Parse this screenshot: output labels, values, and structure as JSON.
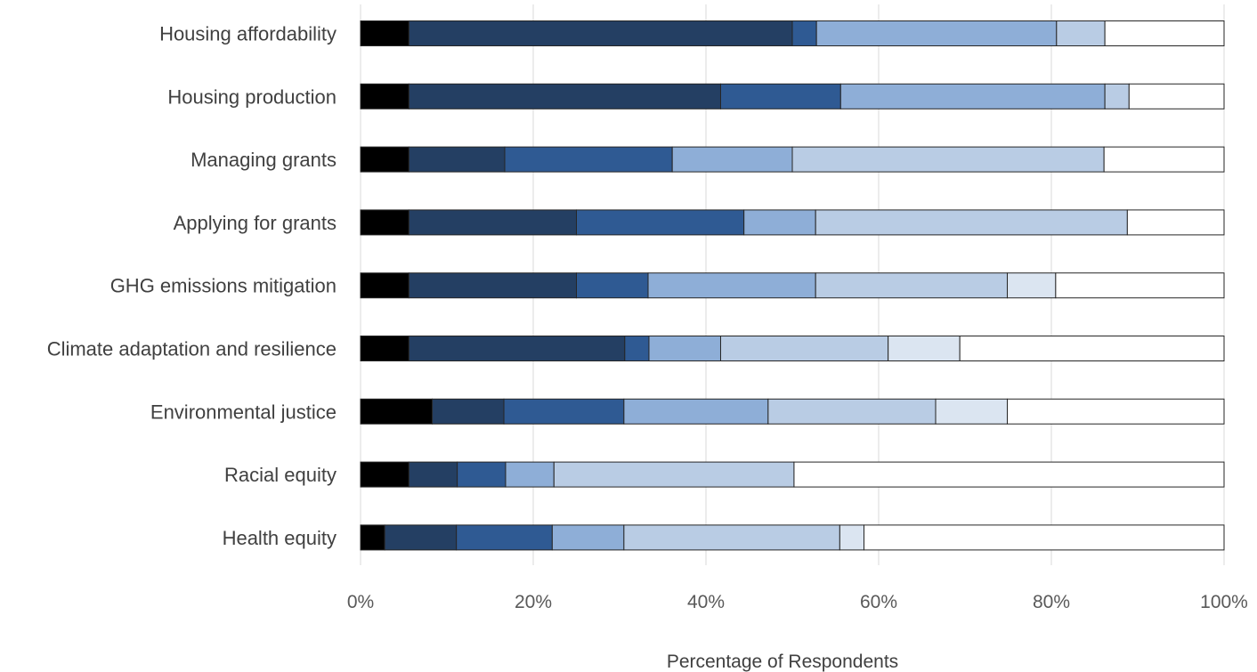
{
  "chart_data": {
    "type": "bar",
    "orientation": "horizontal",
    "stacked": true,
    "normalized": true,
    "title": "",
    "xlabel": "Percentage of Respondents",
    "ylabel": "",
    "xlim": [
      0,
      100
    ],
    "x_ticks": [
      "0%",
      "20%",
      "40%",
      "60%",
      "80%",
      "100%"
    ],
    "x_tick_values": [
      0,
      20,
      40,
      60,
      80,
      100
    ],
    "grid": "vertical",
    "legend": "none",
    "categories": [
      "Housing affordability",
      "Housing production",
      "Managing grants",
      "Applying for grants",
      "GHG emissions mitigation",
      "Climate adaptation and resilience",
      "Environmental justice",
      "Racial equity",
      "Health equity"
    ],
    "series": [
      {
        "color": "#000000",
        "values": [
          5.6,
          5.6,
          5.6,
          5.6,
          5.6,
          5.6,
          8.3,
          5.6,
          2.8
        ]
      },
      {
        "color": "#243f63",
        "values": [
          44.4,
          36.1,
          11.1,
          19.4,
          19.4,
          25.0,
          8.3,
          5.6,
          8.3
        ]
      },
      {
        "color": "#2f5a93",
        "values": [
          2.8,
          13.9,
          19.4,
          19.4,
          8.3,
          2.8,
          13.9,
          5.6,
          11.1
        ]
      },
      {
        "color": "#8eaed7",
        "values": [
          27.8,
          30.6,
          13.9,
          8.3,
          19.4,
          8.3,
          16.7,
          5.6,
          8.3
        ]
      },
      {
        "color": "#b9cce4",
        "values": [
          5.6,
          2.8,
          36.1,
          36.1,
          22.2,
          19.4,
          19.4,
          27.8,
          25.0
        ]
      },
      {
        "color": "#dbe5f1",
        "values": [
          0,
          0,
          0,
          0,
          5.6,
          8.3,
          8.3,
          0,
          2.8
        ]
      },
      {
        "color": "#ffffff",
        "values": [
          13.8,
          11.0,
          13.9,
          11.2,
          19.5,
          30.6,
          25.1,
          49.8,
          41.7
        ]
      }
    ]
  }
}
